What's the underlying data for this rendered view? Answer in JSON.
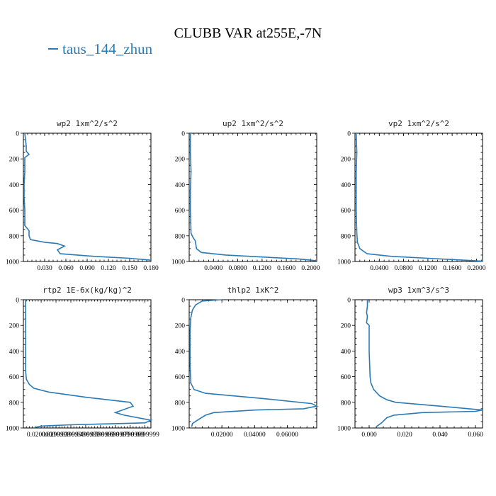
{
  "title": "CLUBB VAR at255E,-7N",
  "legend": {
    "label": "taus_144_zhun",
    "color": "#2a7ab5"
  },
  "chart_data": [
    {
      "type": "line",
      "title": "wp2  1xm^2/s^2",
      "xlim": [
        0.0,
        0.18
      ],
      "ylim": [
        1000,
        0
      ],
      "xticks": [
        0.03,
        0.06,
        0.09,
        0.12,
        0.15,
        0.18
      ],
      "xtick_labels": [
        "0.030",
        "0.060",
        "0.090",
        "0.120",
        "0.150",
        "0.180"
      ],
      "yticks": [
        0,
        200,
        400,
        600,
        800,
        1000
      ],
      "series": [
        {
          "name": "taus_144_zhun",
          "x": [
            0.002,
            0.004,
            0.004,
            0.008,
            0.002,
            0.002,
            0.001,
            0.001,
            0.002,
            0.002,
            0.002,
            0.005,
            0.008,
            0.008,
            0.01,
            0.03,
            0.048,
            0.058,
            0.048,
            0.052,
            0.1,
            0.15,
            0.18
          ],
          "y": [
            0,
            100,
            140,
            165,
            190,
            300,
            400,
            500,
            600,
            680,
            720,
            740,
            760,
            800,
            830,
            850,
            860,
            880,
            910,
            940,
            960,
            975,
            990
          ]
        }
      ]
    },
    {
      "type": "line",
      "title": "up2  1xm^2/s^2",
      "xlim": [
        0.0,
        0.21
      ],
      "ylim": [
        1000,
        0
      ],
      "xticks": [
        0.04,
        0.08,
        0.12,
        0.16,
        0.2
      ],
      "xtick_labels": [
        "0.0400",
        "0.0800",
        "0.1200",
        "0.1600",
        "0.2000"
      ],
      "yticks": [
        0,
        200,
        400,
        600,
        800,
        1000
      ],
      "series": [
        {
          "name": "taus_144_zhun",
          "x": [
            0.002,
            0.002,
            0.003,
            0.002,
            0.002,
            0.003,
            0.006,
            0.01,
            0.012,
            0.02,
            0.06,
            0.12,
            0.18,
            0.21
          ],
          "y": [
            0,
            150,
            300,
            450,
            600,
            780,
            810,
            840,
            900,
            930,
            950,
            965,
            980,
            995
          ]
        }
      ]
    },
    {
      "type": "line",
      "title": "vp2  1xm^2/s^2",
      "xlim": [
        0.0,
        0.21
      ],
      "ylim": [
        1000,
        0
      ],
      "xticks": [
        0.04,
        0.08,
        0.12,
        0.16,
        0.2
      ],
      "xtick_labels": [
        "0.0400",
        "0.0800",
        "0.1200",
        "0.1600",
        "0.2000"
      ],
      "yticks": [
        0,
        200,
        400,
        600,
        800,
        1000
      ],
      "series": [
        {
          "name": "taus_144_zhun",
          "x": [
            0.002,
            0.003,
            0.002,
            0.002,
            0.002,
            0.003,
            0.004,
            0.008,
            0.02,
            0.06,
            0.12,
            0.18,
            0.21
          ],
          "y": [
            0,
            150,
            300,
            450,
            600,
            780,
            850,
            900,
            940,
            960,
            975,
            990,
            998
          ]
        }
      ]
    },
    {
      "type": "line",
      "title": "rtp2  1E-6x(kg/kg)^2",
      "xlim": [
        0.008,
        0.094
      ],
      "ylim": [
        1000,
        0
      ],
      "xticks": [
        0.02,
        0.03,
        0.04,
        0.05,
        0.06,
        0.07,
        0.08,
        0.09
      ],
      "xtick_labels": [
        "0.0200000",
        "0.0299999",
        "0.0399999",
        "0.0499999",
        "0.0599999",
        "0.0699999",
        "0.0799999",
        "0.0899999"
      ],
      "yticks": [
        0,
        200,
        400,
        600,
        800,
        1000
      ],
      "series": [
        {
          "name": "taus_144_zhun",
          "x": [
            0.0095,
            0.0095,
            0.0095,
            0.01,
            0.012,
            0.015,
            0.025,
            0.05,
            0.08,
            0.082,
            0.07,
            0.076,
            0.094,
            0.09,
            0.04,
            0.02,
            0.016
          ],
          "y": [
            0,
            300,
            550,
            620,
            660,
            690,
            720,
            760,
            800,
            830,
            880,
            900,
            940,
            960,
            975,
            985,
            995
          ]
        }
      ]
    },
    {
      "type": "line",
      "title": "thlp2  1xK^2",
      "xlim": [
        0.0,
        0.078
      ],
      "ylim": [
        1000,
        0
      ],
      "xticks": [
        0.02,
        0.04,
        0.06
      ],
      "xtick_labels": [
        "0.02000",
        "0.04000",
        "0.06000"
      ],
      "yticks": [
        0,
        200,
        400,
        600,
        800,
        1000
      ],
      "series": [
        {
          "name": "taus_144_zhun",
          "x": [
            0.02,
            0.008,
            0.004,
            0.002,
            0.001,
            0.0005,
            0.0005,
            0.001,
            0.003,
            0.01,
            0.045,
            0.075,
            0.078,
            0.07,
            0.04,
            0.015,
            0.01,
            0.005,
            0.002,
            0.0015
          ],
          "y": [
            0,
            10,
            40,
            80,
            140,
            250,
            500,
            650,
            700,
            730,
            770,
            810,
            830,
            850,
            860,
            880,
            900,
            940,
            965,
            990
          ]
        }
      ]
    },
    {
      "type": "line",
      "title": "wp3  1xm^3/s^3",
      "xlim": [
        -0.008,
        0.064
      ],
      "ylim": [
        1000,
        0
      ],
      "xticks": [
        0.0,
        0.02,
        0.04,
        0.06
      ],
      "xtick_labels": [
        "0.000",
        "0.020",
        "0.040",
        "0.060"
      ],
      "yticks": [
        0,
        200,
        400,
        600,
        800,
        1000
      ],
      "series": [
        {
          "name": "taus_144_zhun",
          "x": [
            -0.001,
            -0.001,
            -0.0015,
            -0.001,
            -0.0015,
            0.0,
            0.0,
            0.0005,
            0.001,
            0.0025,
            0.006,
            0.01,
            0.015,
            0.04,
            0.064,
            0.06,
            0.03,
            0.014,
            0.01,
            0.007,
            0.004
          ],
          "y": [
            0,
            50,
            100,
            130,
            180,
            200,
            400,
            600,
            650,
            700,
            750,
            780,
            800,
            830,
            860,
            870,
            880,
            900,
            920,
            960,
            990
          ]
        }
      ]
    }
  ]
}
